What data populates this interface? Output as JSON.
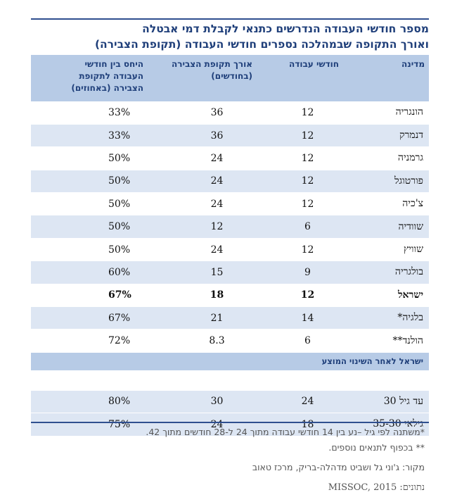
{
  "title": {
    "line1": "מספר חודשי העבודה הנדרשים כתנאי לקבלת דמי אבטלה",
    "line2": "ואורך התקופה שבמהלכה נספרים חודשי העבודה (תקופת הצבירה)"
  },
  "headers": {
    "country": "מדינה",
    "months": "חודשי עבודה",
    "period_line1": "אורך תקופת הצבירה",
    "period_line2": "(בחודשים)",
    "ratio_line1": "היחס בין חודשי",
    "ratio_line2": "העבודה לתקופת",
    "ratio_line3": "הצבירה (באחוזים)"
  },
  "rows": [
    {
      "country": "הונגריה",
      "months": "12",
      "period": "36",
      "ratio": "33%"
    },
    {
      "country": "דנמרק",
      "months": "12",
      "period": "36",
      "ratio": "33%"
    },
    {
      "country": "גרמניה",
      "months": "12",
      "period": "24",
      "ratio": "50%"
    },
    {
      "country": "פורטוגל",
      "months": "12",
      "period": "24",
      "ratio": "50%"
    },
    {
      "country": "צ'כיה",
      "months": "12",
      "period": "24",
      "ratio": "50%"
    },
    {
      "country": "שוודיה",
      "months": "6",
      "period": "12",
      "ratio": "50%"
    },
    {
      "country": "שוויץ",
      "months": "12",
      "period": "24",
      "ratio": "50%"
    },
    {
      "country": "בולגריה",
      "months": "9",
      "period": "15",
      "ratio": "60%"
    },
    {
      "country": "ישראל",
      "months": "12",
      "period": "18",
      "ratio": "67%"
    },
    {
      "country": "בלגיה*",
      "months": "14",
      "period": "21",
      "ratio": "67%"
    },
    {
      "country": "הולנד**",
      "months": "6",
      "period": "8.3",
      "ratio": "72%"
    }
  ],
  "section_label": "ישראל לאחר השינוי המוצע",
  "proposed_rows": [
    {
      "country": "עד גיל 30",
      "months": "24",
      "period": "30",
      "ratio": "80%"
    },
    {
      "country": "גילאי 35-30",
      "months": "18",
      "period": "24",
      "ratio": "75%"
    }
  ],
  "notes": {
    "n1": "*משתנה לפי גיל –נע בין 14 חודשי עבודה מתוך 24 ל-28 חודשים מתוך 42.",
    "n2": "** בכפוף לתנאים נוספים.",
    "n3": "מקור: ג'וני גל ושביט מדהלה-בריק, מרכז טאוב",
    "n4": "נתונים: MISSOC, 2015"
  }
}
